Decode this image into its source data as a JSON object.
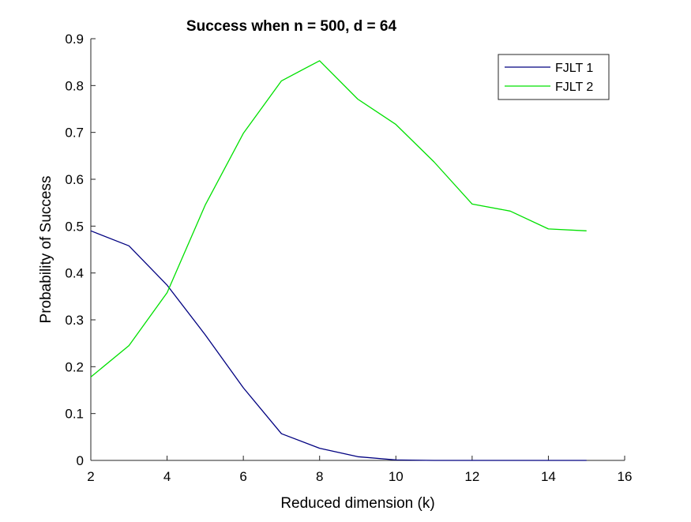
{
  "chart_data": {
    "type": "line",
    "title": "Success when n = 500, d = 64",
    "xlabel": "Reduced dimension (k)",
    "ylabel": "Probability of Success",
    "xlim": [
      2,
      16
    ],
    "ylim": [
      0,
      0.9
    ],
    "xticks": [
      2,
      4,
      6,
      8,
      10,
      12,
      14,
      16
    ],
    "yticks": [
      0,
      0.1,
      0.2,
      0.3,
      0.4,
      0.5,
      0.6,
      0.7,
      0.8,
      0.9
    ],
    "xtick_labels": [
      "2",
      "4",
      "6",
      "8",
      "10",
      "12",
      "14",
      "16"
    ],
    "ytick_labels": [
      "0",
      "0.1",
      "0.2",
      "0.3",
      "0.4",
      "0.5",
      "0.6",
      "0.7",
      "0.8",
      "0.9"
    ],
    "grid": false,
    "legend_position": "top-right",
    "series": [
      {
        "name": "FJLT 1",
        "color": "#000080",
        "x": [
          2,
          3,
          4,
          5,
          6,
          7,
          8,
          9,
          10,
          11,
          12,
          13,
          14,
          15
        ],
        "y": [
          0.49,
          0.458,
          0.374,
          0.268,
          0.155,
          0.057,
          0.026,
          0.008,
          0.001,
          0.0,
          0.0,
          0.0,
          0.0,
          0.0
        ]
      },
      {
        "name": "FJLT 2",
        "color": "#00e000",
        "x": [
          2,
          3,
          4,
          5,
          6,
          7,
          8,
          9,
          10,
          11,
          12,
          13,
          14,
          15
        ],
        "y": [
          0.178,
          0.245,
          0.358,
          0.545,
          0.698,
          0.81,
          0.853,
          0.771,
          0.717,
          0.637,
          0.547,
          0.532,
          0.494,
          0.49
        ]
      }
    ]
  }
}
